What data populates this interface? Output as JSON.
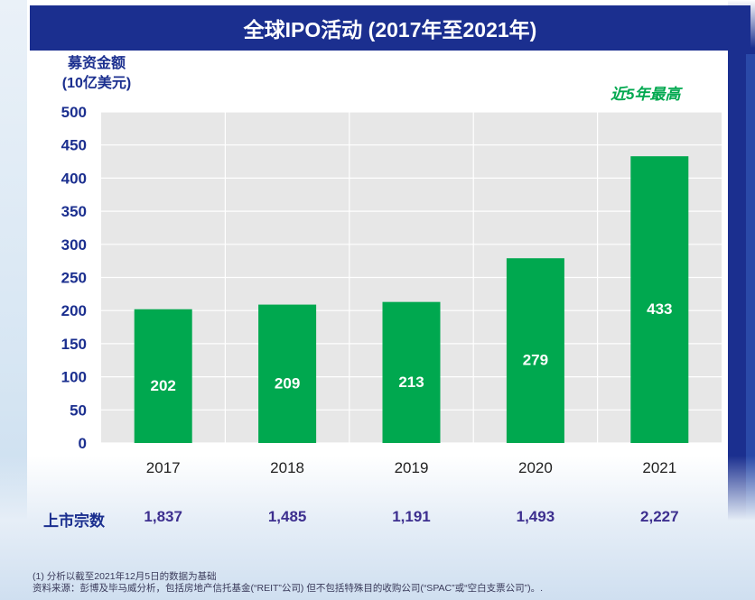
{
  "header": {
    "title": "全球IPO活动 (2017年至2021年)"
  },
  "y_axis_title": {
    "line1": "募资金额",
    "line2": "(10亿美元)"
  },
  "highlight_note": "近5年最高",
  "chart_data": {
    "type": "bar",
    "title": "全球IPO活动 (2017年至2021年)",
    "ylabel": "募资金额 (10亿美元)",
    "xlabel": "",
    "categories": [
      "2017",
      "2018",
      "2019",
      "2020",
      "2021"
    ],
    "values": [
      202,
      209,
      213,
      279,
      433
    ],
    "value_labels": [
      "202",
      "209",
      "213",
      "279",
      "433"
    ],
    "ylim": [
      0,
      500
    ],
    "yticks": [
      0,
      50,
      100,
      150,
      200,
      250,
      300,
      350,
      400,
      450,
      500
    ],
    "bar_color": "#00a84f",
    "grid": true,
    "annotation": "近5年最高"
  },
  "listings": {
    "label": "上市宗数",
    "values": [
      "1,837",
      "1,485",
      "1,191",
      "1,493",
      "2,227"
    ]
  },
  "footer": {
    "note1": "(1) 分析以截至2021年12月5日的数据为基础",
    "note2": "资料来源：彭博及毕马威分析，包括房地产信托基金(“REIT”公司) 但不包括特殊目的收购公司(“SPAC”或“空白支票公司”)。."
  },
  "colors": {
    "header_bg": "#1b2f8f",
    "bar": "#00a84f",
    "axis_text": "#1b2f8f",
    "plot_bg": "#e7e7e7",
    "grid": "#ffffff"
  }
}
